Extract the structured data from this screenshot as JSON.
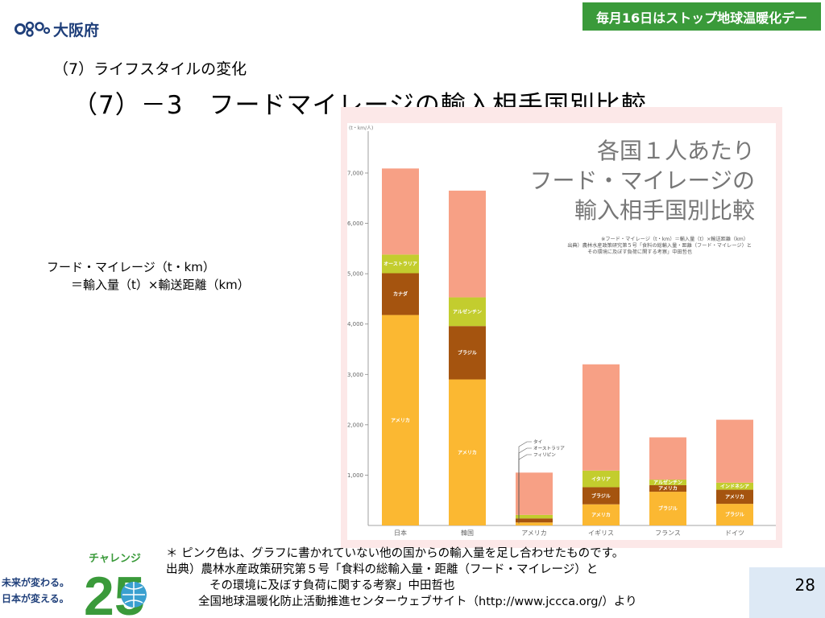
{
  "header": {
    "org_name": "大阪府",
    "banner": "毎月16日はストップ地球温暖化デー"
  },
  "subtitle": "（7）ライフスタイルの変化",
  "title": "（7）－3　フードマイレージの輸入相手国別比較",
  "formula": {
    "line1": "フード・マイレージ（t・km）",
    "line2": "＝輸入量（t）×輸送距離（km）"
  },
  "colors": {
    "banner": "#3a9a3a",
    "pink_other": "#f7a085",
    "chart_bg": "#fce8e8",
    "page_box": "#dde9f5"
  },
  "chart_data": {
    "type": "bar",
    "stacked": true,
    "title": "各国１人あたり\nフード・マイレージの\n輸入相手国別比較",
    "title_lines": [
      "各国１人あたり",
      "フード・マイレージの",
      "輸入相手国別比較"
    ],
    "note_lines": [
      "※フード・マイレージ（t・km）＝輸入量（t）×輸送距離（km）",
      "出典）農林水産政策研究第５号「食料の総輸入量・距離（フード・マイレージ）と",
      "その環境に及ぼす負荷に関する考察」中田哲也"
    ],
    "ylabel": "(t・km/人)",
    "ylim": [
      0,
      7500
    ],
    "yticks": [
      "1,000",
      "2,000",
      "3,000",
      "4,000",
      "5,000",
      "6,000",
      "7,000"
    ],
    "grid": false,
    "categories": [
      "日本",
      "韓国",
      "アメリカ",
      "イギリス",
      "フランス",
      "ドイツ"
    ],
    "bars": [
      {
        "category": "日本",
        "segments": [
          {
            "label": "アメリカ",
            "value": 4180,
            "color": "#fbb832"
          },
          {
            "label": "カナダ",
            "value": 830,
            "color": "#a5540f"
          },
          {
            "label": "オーストラリア",
            "value": 370,
            "color": "#c3cd2e"
          },
          {
            "label": "",
            "value": 1710,
            "color": "#f7a085"
          }
        ]
      },
      {
        "category": "韓国",
        "segments": [
          {
            "label": "アメリカ",
            "value": 2900,
            "color": "#fbb832"
          },
          {
            "label": "ブラジル",
            "value": 1060,
            "color": "#a5540f"
          },
          {
            "label": "アルゼンチン",
            "value": 570,
            "color": "#c3cd2e"
          },
          {
            "label": "",
            "value": 2120,
            "color": "#f7a085"
          }
        ]
      },
      {
        "category": "アメリカ",
        "segments": [
          {
            "label": "フィリピン",
            "value": 60,
            "color": "#fbb832"
          },
          {
            "label": "オーストラリア",
            "value": 80,
            "color": "#a5540f"
          },
          {
            "label": "タイ",
            "value": 70,
            "color": "#c3cd2e"
          },
          {
            "label": "",
            "value": 840,
            "color": "#f7a085"
          }
        ]
      },
      {
        "category": "イギリス",
        "segments": [
          {
            "label": "アメリカ",
            "value": 420,
            "color": "#fbb832"
          },
          {
            "label": "ブラジル",
            "value": 340,
            "color": "#a5540f"
          },
          {
            "label": "イタリア",
            "value": 330,
            "color": "#c3cd2e"
          },
          {
            "label": "",
            "value": 2110,
            "color": "#f7a085"
          }
        ]
      },
      {
        "category": "フランス",
        "segments": [
          {
            "label": "ブラジル",
            "value": 670,
            "color": "#fbb832"
          },
          {
            "label": "アメリカ",
            "value": 130,
            "color": "#a5540f"
          },
          {
            "label": "アルゼンチン",
            "value": 110,
            "color": "#c3cd2e"
          },
          {
            "label": "",
            "value": 840,
            "color": "#f7a085"
          }
        ]
      },
      {
        "category": "ドイツ",
        "segments": [
          {
            "label": "ブラジル",
            "value": 430,
            "color": "#fbb832"
          },
          {
            "label": "アメリカ",
            "value": 280,
            "color": "#a5540f"
          },
          {
            "label": "インドネシア",
            "value": 140,
            "color": "#c3cd2e"
          },
          {
            "label": "",
            "value": 1250,
            "color": "#f7a085"
          }
        ]
      }
    ],
    "callout_labels": [
      "タイ",
      "オーストラリア",
      "フィリピン"
    ]
  },
  "footnote": {
    "line1": "＊ ピンク色は、グラフに書かれていない他の国からの輸入量を足し合わせたものです。",
    "line2": "出典）農林水産政策研究第５号「食料の総輸入量・距離（フード・マイレージ）と",
    "line3": "その環境に及ぼす負荷に関する考察」中田哲也",
    "line4": "全国地球温暖化防止活動推進センターウェブサイト（http://www.jccca.org/）より"
  },
  "challenge": {
    "label": "チャレンジ",
    "number": "25",
    "slogan1": "未来が変わる。",
    "slogan2": "日本が変える。"
  },
  "page_number": "28"
}
